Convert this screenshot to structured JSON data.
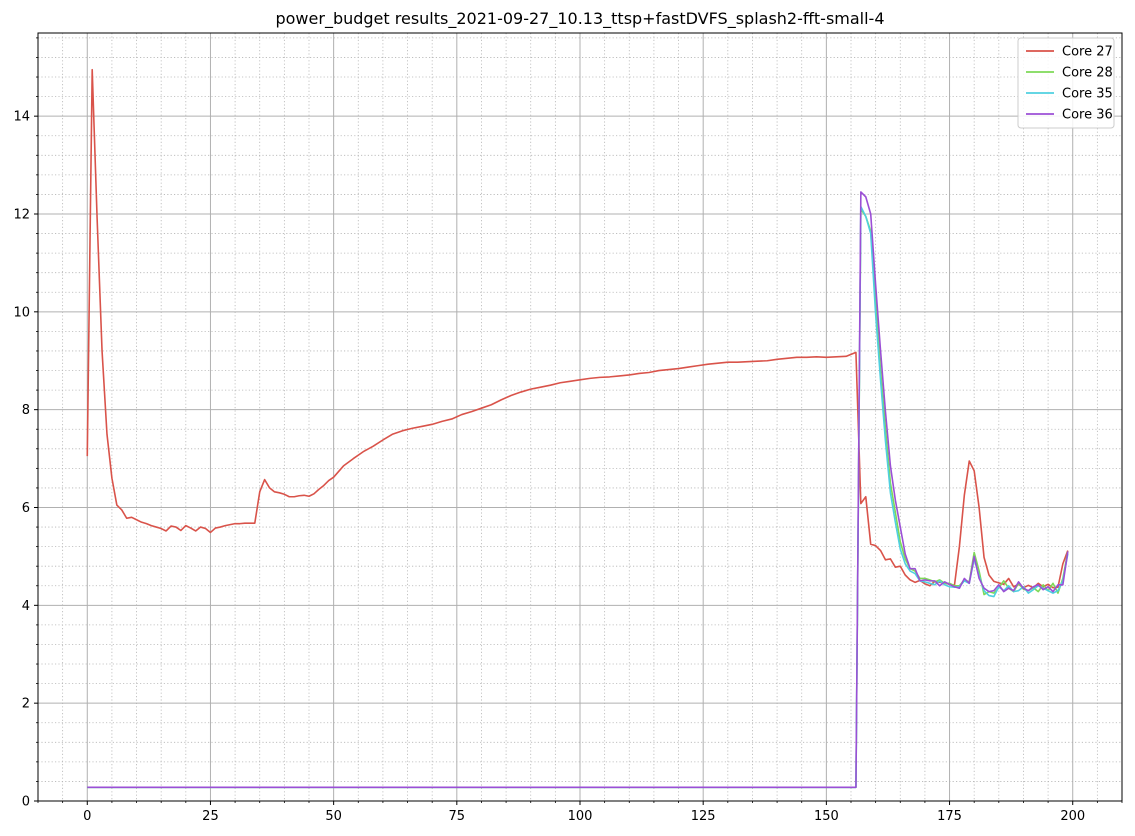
{
  "chart_data": {
    "type": "line",
    "title": "power_budget results_2021-09-27_10.13_ttsp+fastDVFS_splash2-fft-small-4",
    "xlabel": "",
    "ylabel": "",
    "xlim": [
      -10,
      210
    ],
    "ylim": [
      0,
      15.7
    ],
    "x_major_ticks": [
      0,
      25,
      50,
      75,
      100,
      125,
      150,
      175,
      200
    ],
    "x_tick_labels": [
      "0",
      "25",
      "50",
      "75",
      "100",
      "125",
      "150",
      "175",
      "200"
    ],
    "x_minor_step": 5,
    "y_major_ticks": [
      0,
      2,
      4,
      6,
      8,
      10,
      12,
      14
    ],
    "y_tick_labels": [
      "0",
      "2",
      "4",
      "6",
      "8",
      "10",
      "12",
      "14"
    ],
    "y_minor_step": 0.4,
    "grid": {
      "major": true,
      "minor": true
    },
    "legend_position": "top-right",
    "series": [
      {
        "name": "Core 27",
        "color": "#d9534a",
        "points": [
          [
            0,
            7.05
          ],
          [
            1,
            14.95
          ],
          [
            2,
            11.9
          ],
          [
            3,
            9.2
          ],
          [
            4,
            7.5
          ],
          [
            5,
            6.6
          ],
          [
            6,
            6.05
          ],
          [
            7,
            5.95
          ],
          [
            8,
            5.78
          ],
          [
            9,
            5.8
          ],
          [
            10,
            5.75
          ],
          [
            11,
            5.7
          ],
          [
            12,
            5.67
          ],
          [
            13,
            5.63
          ],
          [
            14,
            5.6
          ],
          [
            15,
            5.57
          ],
          [
            16,
            5.52
          ],
          [
            17,
            5.62
          ],
          [
            18,
            5.6
          ],
          [
            19,
            5.53
          ],
          [
            20,
            5.63
          ],
          [
            21,
            5.58
          ],
          [
            22,
            5.52
          ],
          [
            23,
            5.6
          ],
          [
            24,
            5.57
          ],
          [
            25,
            5.49
          ],
          [
            26,
            5.58
          ],
          [
            27,
            5.6
          ],
          [
            28,
            5.63
          ],
          [
            29,
            5.65
          ],
          [
            30,
            5.67
          ],
          [
            31,
            5.67
          ],
          [
            32,
            5.68
          ],
          [
            33,
            5.68
          ],
          [
            34,
            5.68
          ],
          [
            35,
            6.32
          ],
          [
            36,
            6.57
          ],
          [
            37,
            6.4
          ],
          [
            38,
            6.32
          ],
          [
            39,
            6.3
          ],
          [
            40,
            6.27
          ],
          [
            41,
            6.22
          ],
          [
            42,
            6.22
          ],
          [
            43,
            6.24
          ],
          [
            44,
            6.25
          ],
          [
            45,
            6.23
          ],
          [
            46,
            6.28
          ],
          [
            47,
            6.37
          ],
          [
            48,
            6.45
          ],
          [
            49,
            6.55
          ],
          [
            50,
            6.62
          ],
          [
            52,
            6.85
          ],
          [
            54,
            7.0
          ],
          [
            56,
            7.14
          ],
          [
            58,
            7.25
          ],
          [
            60,
            7.38
          ],
          [
            62,
            7.5
          ],
          [
            64,
            7.57
          ],
          [
            66,
            7.62
          ],
          [
            68,
            7.66
          ],
          [
            70,
            7.7
          ],
          [
            72,
            7.76
          ],
          [
            74,
            7.81
          ],
          [
            76,
            7.9
          ],
          [
            78,
            7.96
          ],
          [
            80,
            8.03
          ],
          [
            82,
            8.1
          ],
          [
            84,
            8.2
          ],
          [
            86,
            8.29
          ],
          [
            88,
            8.36
          ],
          [
            90,
            8.42
          ],
          [
            92,
            8.46
          ],
          [
            94,
            8.5
          ],
          [
            96,
            8.55
          ],
          [
            98,
            8.58
          ],
          [
            100,
            8.61
          ],
          [
            102,
            8.64
          ],
          [
            104,
            8.66
          ],
          [
            106,
            8.67
          ],
          [
            108,
            8.69
          ],
          [
            110,
            8.71
          ],
          [
            112,
            8.74
          ],
          [
            114,
            8.76
          ],
          [
            116,
            8.8
          ],
          [
            118,
            8.82
          ],
          [
            120,
            8.84
          ],
          [
            122,
            8.87
          ],
          [
            124,
            8.9
          ],
          [
            126,
            8.93
          ],
          [
            128,
            8.95
          ],
          [
            130,
            8.97
          ],
          [
            132,
            8.97
          ],
          [
            134,
            8.98
          ],
          [
            136,
            8.99
          ],
          [
            138,
            9.0
          ],
          [
            140,
            9.03
          ],
          [
            142,
            9.05
          ],
          [
            144,
            9.07
          ],
          [
            146,
            9.07
          ],
          [
            148,
            9.08
          ],
          [
            150,
            9.07
          ],
          [
            152,
            9.08
          ],
          [
            154,
            9.09
          ],
          [
            155,
            9.13
          ],
          [
            156,
            9.17
          ],
          [
            157,
            6.08
          ],
          [
            158,
            6.22
          ],
          [
            159,
            5.25
          ],
          [
            160,
            5.22
          ],
          [
            161,
            5.12
          ],
          [
            162,
            4.93
          ],
          [
            163,
            4.95
          ],
          [
            164,
            4.78
          ],
          [
            165,
            4.8
          ],
          [
            166,
            4.62
          ],
          [
            167,
            4.52
          ],
          [
            168,
            4.47
          ],
          [
            169,
            4.51
          ],
          [
            170,
            4.44
          ],
          [
            171,
            4.4
          ],
          [
            172,
            4.49
          ],
          [
            173,
            4.47
          ],
          [
            174,
            4.46
          ],
          [
            175,
            4.43
          ],
          [
            176,
            4.41
          ],
          [
            177,
            5.2
          ],
          [
            178,
            6.25
          ],
          [
            179,
            6.95
          ],
          [
            180,
            6.75
          ],
          [
            181,
            6.0
          ],
          [
            182,
            4.98
          ],
          [
            183,
            4.62
          ],
          [
            184,
            4.49
          ],
          [
            185,
            4.46
          ],
          [
            186,
            4.43
          ],
          [
            187,
            4.55
          ],
          [
            188,
            4.38
          ],
          [
            189,
            4.43
          ],
          [
            190,
            4.36
          ],
          [
            191,
            4.41
          ],
          [
            192,
            4.36
          ],
          [
            193,
            4.45
          ],
          [
            194,
            4.38
          ],
          [
            195,
            4.43
          ],
          [
            196,
            4.36
          ],
          [
            197,
            4.37
          ],
          [
            198,
            4.85
          ],
          [
            199,
            5.12
          ]
        ]
      },
      {
        "name": "Core 28",
        "color": "#7ed957",
        "points": [
          [
            0,
            0.28
          ],
          [
            156,
            0.28
          ],
          [
            157,
            12.1
          ],
          [
            158,
            11.95
          ],
          [
            159,
            11.65
          ],
          [
            160,
            10.2
          ],
          [
            161,
            8.8
          ],
          [
            162,
            7.6
          ],
          [
            163,
            6.5
          ],
          [
            164,
            5.9
          ],
          [
            165,
            5.3
          ],
          [
            166,
            4.95
          ],
          [
            167,
            4.75
          ],
          [
            168,
            4.7
          ],
          [
            169,
            4.55
          ],
          [
            170,
            4.55
          ],
          [
            171,
            4.52
          ],
          [
            172,
            4.48
          ],
          [
            173,
            4.52
          ],
          [
            174,
            4.45
          ],
          [
            175,
            4.45
          ],
          [
            176,
            4.4
          ],
          [
            177,
            4.4
          ],
          [
            178,
            4.52
          ],
          [
            179,
            4.48
          ],
          [
            180,
            5.08
          ],
          [
            181,
            4.7
          ],
          [
            182,
            4.22
          ],
          [
            183,
            4.28
          ],
          [
            184,
            4.25
          ],
          [
            185,
            4.36
          ],
          [
            186,
            4.5
          ],
          [
            187,
            4.35
          ],
          [
            188,
            4.28
          ],
          [
            189,
            4.45
          ],
          [
            190,
            4.33
          ],
          [
            191,
            4.3
          ],
          [
            192,
            4.36
          ],
          [
            193,
            4.28
          ],
          [
            194,
            4.42
          ],
          [
            195,
            4.3
          ],
          [
            196,
            4.45
          ],
          [
            197,
            4.25
          ],
          [
            198,
            4.55
          ],
          [
            199,
            5.1
          ]
        ]
      },
      {
        "name": "Core 35",
        "color": "#4fd0e0",
        "points": [
          [
            0,
            0.28
          ],
          [
            156,
            0.28
          ],
          [
            157,
            12.15
          ],
          [
            158,
            11.95
          ],
          [
            159,
            11.6
          ],
          [
            160,
            9.95
          ],
          [
            161,
            8.6
          ],
          [
            162,
            7.35
          ],
          [
            163,
            6.3
          ],
          [
            164,
            5.7
          ],
          [
            165,
            5.15
          ],
          [
            166,
            4.85
          ],
          [
            167,
            4.7
          ],
          [
            168,
            4.65
          ],
          [
            169,
            4.5
          ],
          [
            170,
            4.48
          ],
          [
            171,
            4.45
          ],
          [
            172,
            4.42
          ],
          [
            173,
            4.5
          ],
          [
            174,
            4.42
          ],
          [
            175,
            4.38
          ],
          [
            176,
            4.37
          ],
          [
            177,
            4.38
          ],
          [
            178,
            4.5
          ],
          [
            179,
            4.45
          ],
          [
            180,
            4.95
          ],
          [
            181,
            4.6
          ],
          [
            182,
            4.3
          ],
          [
            183,
            4.2
          ],
          [
            184,
            4.18
          ],
          [
            185,
            4.38
          ],
          [
            186,
            4.3
          ],
          [
            187,
            4.4
          ],
          [
            188,
            4.28
          ],
          [
            189,
            4.3
          ],
          [
            190,
            4.38
          ],
          [
            191,
            4.25
          ],
          [
            192,
            4.32
          ],
          [
            193,
            4.4
          ],
          [
            194,
            4.35
          ],
          [
            195,
            4.3
          ],
          [
            196,
            4.25
          ],
          [
            197,
            4.3
          ],
          [
            198,
            4.5
          ],
          [
            199,
            5.05
          ]
        ]
      },
      {
        "name": "Core 36",
        "color": "#9b4fd6",
        "points": [
          [
            0,
            0.28
          ],
          [
            156,
            0.28
          ],
          [
            157,
            12.45
          ],
          [
            158,
            12.35
          ],
          [
            159,
            12.0
          ],
          [
            160,
            10.55
          ],
          [
            161,
            9.2
          ],
          [
            162,
            7.95
          ],
          [
            163,
            6.85
          ],
          [
            164,
            6.15
          ],
          [
            165,
            5.6
          ],
          [
            166,
            5.05
          ],
          [
            167,
            4.75
          ],
          [
            168,
            4.75
          ],
          [
            169,
            4.5
          ],
          [
            170,
            4.52
          ],
          [
            171,
            4.5
          ],
          [
            172,
            4.5
          ],
          [
            173,
            4.4
          ],
          [
            174,
            4.48
          ],
          [
            175,
            4.43
          ],
          [
            176,
            4.38
          ],
          [
            177,
            4.35
          ],
          [
            178,
            4.55
          ],
          [
            179,
            4.45
          ],
          [
            180,
            5.0
          ],
          [
            181,
            4.55
          ],
          [
            182,
            4.35
          ],
          [
            183,
            4.28
          ],
          [
            184,
            4.3
          ],
          [
            185,
            4.42
          ],
          [
            186,
            4.28
          ],
          [
            187,
            4.35
          ],
          [
            188,
            4.3
          ],
          [
            189,
            4.48
          ],
          [
            190,
            4.35
          ],
          [
            191,
            4.3
          ],
          [
            192,
            4.38
          ],
          [
            193,
            4.42
          ],
          [
            194,
            4.32
          ],
          [
            195,
            4.38
          ],
          [
            196,
            4.28
          ],
          [
            197,
            4.42
          ],
          [
            198,
            4.42
          ],
          [
            199,
            5.1
          ]
        ]
      }
    ]
  }
}
